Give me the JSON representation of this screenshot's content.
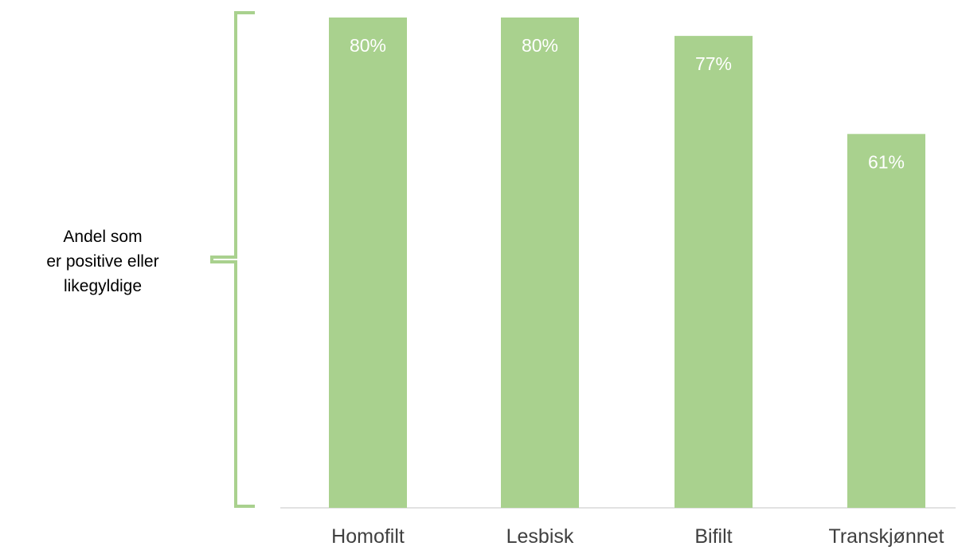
{
  "chart_data": {
    "type": "bar",
    "categories": [
      "Homofilt",
      "Lesbisk",
      "Bifilt",
      "Transkjønnet"
    ],
    "values": [
      80,
      80,
      77,
      61
    ],
    "value_labels": [
      "80%",
      "80%",
      "77%",
      "61%"
    ],
    "ylim": [
      0,
      100
    ],
    "grid": false,
    "legend": "none",
    "bracket_label_lines": [
      "Andel som",
      "er positive eller",
      "likegyldige"
    ],
    "colors": {
      "bar": "#a9d18e",
      "bracket": "#a9d18e",
      "axis": "#d9d9d9",
      "value_label": "#ffffff",
      "category_label": "#404040"
    }
  }
}
